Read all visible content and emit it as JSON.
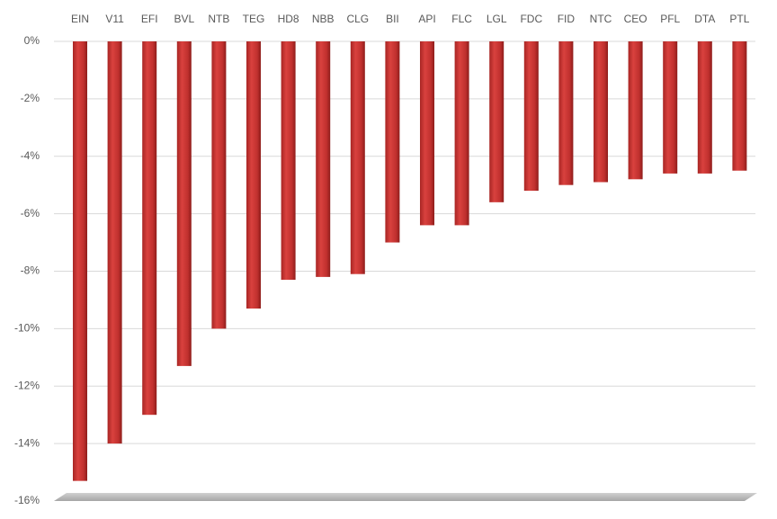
{
  "chart_data": {
    "type": "bar",
    "categories": [
      "EIN",
      "V11",
      "EFI",
      "BVL",
      "NTB",
      "TEG",
      "HD8",
      "NBB",
      "CLG",
      "BII",
      "API",
      "FLC",
      "LGL",
      "FDC",
      "FID",
      "NTC",
      "CEO",
      "PFL",
      "DTA",
      "PTL"
    ],
    "values": [
      -15.3,
      -14.0,
      -13.0,
      -11.3,
      -10.0,
      -9.3,
      -8.3,
      -8.2,
      -8.1,
      -7.0,
      -6.4,
      -6.4,
      -5.6,
      -5.2,
      -5.0,
      -4.9,
      -4.8,
      -4.6,
      -4.6,
      -4.5
    ],
    "color": "#c0302e",
    "ylim": [
      -16,
      0
    ],
    "yticks": [
      {
        "value": 0,
        "label": "0%"
      },
      {
        "value": -2,
        "label": "-2%"
      },
      {
        "value": -4,
        "label": "-4%"
      },
      {
        "value": -6,
        "label": "-6%"
      },
      {
        "value": -8,
        "label": "-8%"
      },
      {
        "value": -10,
        "label": "-10%"
      },
      {
        "value": -12,
        "label": "-12%"
      },
      {
        "value": -14,
        "label": "-14%"
      },
      {
        "value": -16,
        "label": "-16%"
      }
    ],
    "grid": true
  }
}
